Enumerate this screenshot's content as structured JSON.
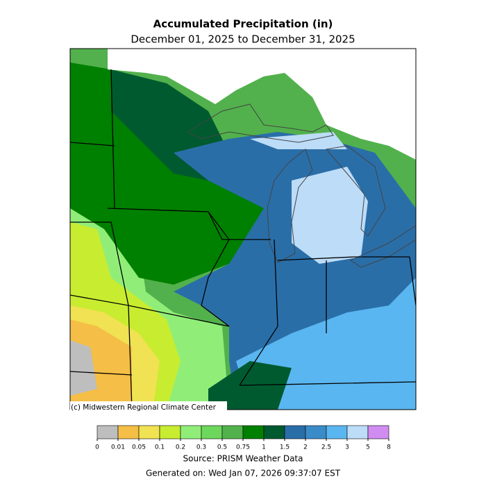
{
  "title": "Accumulated Precipitation (in)",
  "subtitle": "December 01, 2025 to December 31, 2025",
  "credit": "(c) Midwestern Regional Climate Center",
  "legend": {
    "boundaries": [
      0,
      0.01,
      0.05,
      0.1,
      0.2,
      0.3,
      0.5,
      0.75,
      1,
      1.5,
      2,
      2.5,
      3,
      5,
      8
    ],
    "colors": [
      "#bebebe",
      "#f5be46",
      "#f0e252",
      "#c8ec30",
      "#90ee78",
      "#6cd75c",
      "#52b14c",
      "#008000",
      "#005a30",
      "#2a6ea8",
      "#3a8cc8",
      "#5ab6f0",
      "#bcdcf8",
      "#d08cf0"
    ]
  },
  "source": "Source: PRISM Weather Data",
  "generated": "Generated on: Wed Jan 07, 2026 09:37:07 EST"
}
